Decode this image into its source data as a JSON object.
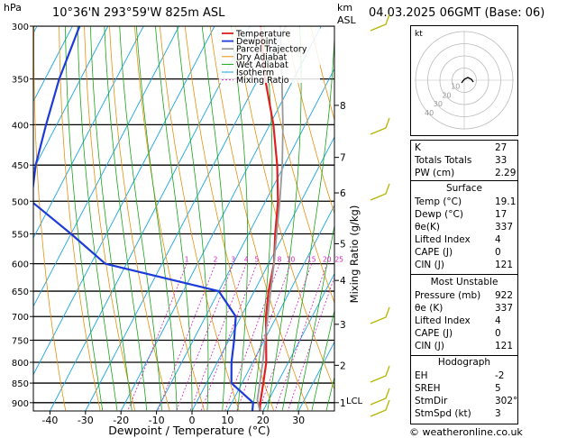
{
  "header": {
    "location": "10°36'N  293°59'W  825m  ASL",
    "datetime": "04.03.2025  06GMT  (Base: 06)",
    "hpa_label": "hPa",
    "km_label": "km",
    "asl_label": "ASL",
    "copyright": "© weatheronline.co.uk"
  },
  "chart_data": {
    "type": "skew-t log-p",
    "xlabel": "Dewpoint / Temperature (°C)",
    "ylabel_right": "Mixing Ratio (g/kg)",
    "pressure_ticks": [
      300,
      350,
      400,
      450,
      500,
      550,
      600,
      650,
      700,
      750,
      800,
      850,
      900
    ],
    "temperature_ticks": [
      -40,
      -30,
      -20,
      -10,
      0,
      10,
      20,
      30
    ],
    "km_ticks": [
      {
        "label": "8",
        "p": 378
      },
      {
        "label": "7",
        "p": 440
      },
      {
        "label": "6",
        "p": 488
      },
      {
        "label": "5",
        "p": 566
      },
      {
        "label": "4",
        "p": 630
      },
      {
        "label": "3",
        "p": 716
      },
      {
        "label": "2",
        "p": 807
      },
      {
        "label": "1",
        "p": 900
      }
    ],
    "lcl": {
      "label": "LCL",
      "p": 893
    },
    "mixing_ratio_labels": [
      "1",
      "2",
      "3",
      "4",
      "5",
      "8",
      "10",
      "15",
      "20",
      "25"
    ],
    "legend": [
      "Temperature",
      "Dewpoint",
      "Parcel Trajectory",
      "Dry Adiabat",
      "Wet Adiabat",
      "Isotherm",
      "Mixing Ratio"
    ],
    "series": [
      {
        "name": "Temperature",
        "color": "#e02020",
        "points": [
          [
            922,
            19.1
          ],
          [
            900,
            18.0
          ],
          [
            850,
            16.0
          ],
          [
            800,
            13.8
          ],
          [
            750,
            10.5
          ],
          [
            700,
            7.0
          ],
          [
            650,
            4.0
          ],
          [
            600,
            1.5
          ],
          [
            550,
            -2.5
          ],
          [
            500,
            -6.5
          ],
          [
            450,
            -12.0
          ],
          [
            400,
            -19.0
          ],
          [
            350,
            -28.0
          ],
          [
            300,
            -37.0
          ]
        ]
      },
      {
        "name": "Dewpoint",
        "color": "#1c3bd8",
        "points": [
          [
            922,
            17.0
          ],
          [
            900,
            16.0
          ],
          [
            850,
            7.0
          ],
          [
            800,
            4.0
          ],
          [
            750,
            1.5
          ],
          [
            700,
            -1.5
          ],
          [
            650,
            -10.0
          ],
          [
            600,
            -46.0
          ],
          [
            550,
            -60.0
          ],
          [
            500,
            -76.0
          ],
          [
            450,
            -80.0
          ],
          [
            400,
            -83.0
          ],
          [
            350,
            -86.0
          ],
          [
            300,
            -88.0
          ]
        ]
      },
      {
        "name": "Parcel Trajectory",
        "color": "#999999",
        "points": [
          [
            922,
            19.1
          ],
          [
            893,
            16.8
          ],
          [
            850,
            15.0
          ],
          [
            800,
            12.8
          ],
          [
            750,
            10.2
          ],
          [
            700,
            7.5
          ],
          [
            650,
            4.6
          ],
          [
            600,
            1.5
          ],
          [
            550,
            -2.1
          ],
          [
            500,
            -6.0
          ],
          [
            450,
            -10.6
          ],
          [
            400,
            -16.3
          ],
          [
            350,
            -23.3
          ],
          [
            300,
            -31.5
          ]
        ]
      }
    ],
    "hodograph": {
      "label": "kt",
      "ring_labels": [
        "40",
        "30",
        "20",
        "10"
      ]
    }
  },
  "colors": {
    "temperature": "#e02020",
    "dewpoint": "#1c3bd8",
    "parcel": "#999999",
    "dry_adiabat": "#e8900c",
    "wet_adiabat": "#1aa51a",
    "isotherm": "#1aa6e0",
    "mixing_ratio": "#d020c0",
    "wind_barb": "#b5b500"
  },
  "indices": {
    "rows": [
      {
        "label": "K",
        "value": "27"
      },
      {
        "label": "Totals Totals",
        "value": "33"
      },
      {
        "label": "PW (cm)",
        "value": "2.29"
      }
    ]
  },
  "surface": {
    "title": "Surface",
    "rows": [
      {
        "label": "Temp (°C)",
        "value": "19.1"
      },
      {
        "label": "Dewp (°C)",
        "value": "17"
      },
      {
        "label": "θe(K)",
        "value": "337"
      },
      {
        "label": "Lifted Index",
        "value": "4"
      },
      {
        "label": "CAPE (J)",
        "value": "0"
      },
      {
        "label": "CIN (J)",
        "value": "121"
      }
    ]
  },
  "most_unstable": {
    "title": "Most Unstable",
    "rows": [
      {
        "label": "Pressure (mb)",
        "value": "922"
      },
      {
        "label": "θe (K)",
        "value": "337"
      },
      {
        "label": "Lifted Index",
        "value": "4"
      },
      {
        "label": "CAPE (J)",
        "value": "0"
      },
      {
        "label": "CIN (J)",
        "value": "121"
      }
    ]
  },
  "hodograph_table": {
    "title": "Hodograph",
    "rows": [
      {
        "label": "EH",
        "value": "-2"
      },
      {
        "label": "SREH",
        "value": "5"
      },
      {
        "label": "StmDir",
        "value": "302°"
      },
      {
        "label": "StmSpd (kt)",
        "value": "3"
      }
    ]
  }
}
